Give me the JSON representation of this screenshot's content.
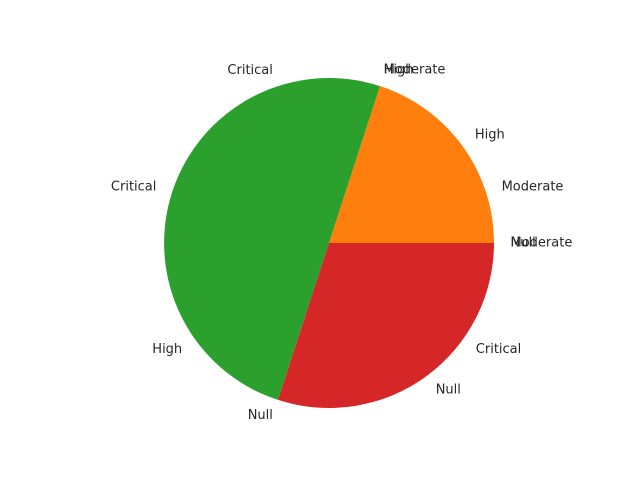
{
  "chart_data": {
    "type": "pie",
    "title": "",
    "slices": [
      {
        "label": "Null",
        "value": 0,
        "color": "#1f77b4"
      },
      {
        "label": "Moderate",
        "value": 0.2,
        "color": "#ff7f0e"
      },
      {
        "label": "Critical",
        "value": 0.5,
        "color": "#2ca02c"
      },
      {
        "label": "High",
        "value": 0.3,
        "color": "#d62728"
      }
    ],
    "labels": [
      {
        "text": "Null",
        "angle_deg": 0.0
      },
      {
        "text": "Moderate",
        "angle_deg": 0.0
      },
      {
        "text": "Moderate",
        "angle_deg": 18.0
      },
      {
        "text": "High",
        "angle_deg": 36.5
      },
      {
        "text": "Moderate",
        "angle_deg": 72.5
      },
      {
        "text": "High",
        "angle_deg": 72.5
      },
      {
        "text": "Critical",
        "angle_deg": 108.0
      },
      {
        "text": "Critical",
        "angle_deg": 162.0
      },
      {
        "text": "High",
        "angle_deg": 216.0
      },
      {
        "text": "Null",
        "angle_deg": 252.0
      },
      {
        "text": "Null",
        "angle_deg": 306.0
      },
      {
        "text": "Critical",
        "angle_deg": 324.0
      }
    ]
  }
}
